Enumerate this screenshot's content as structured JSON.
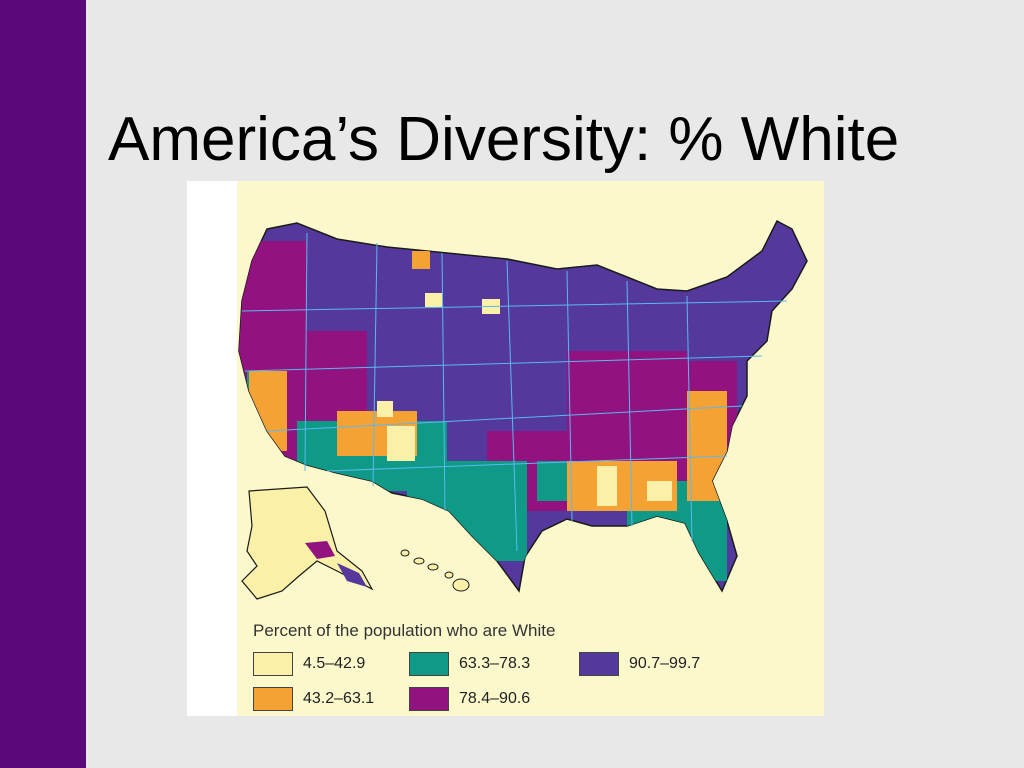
{
  "slide": {
    "title": "America’s Diversity: % White"
  },
  "map": {
    "legend_title": "Percent of the population who are White",
    "colors": {
      "background": "#fbf8cc",
      "border": "#5bb8f0",
      "outline": "#1a1a1a"
    },
    "legend": [
      {
        "label": "4.5–42.9",
        "color": "#fbf0a8"
      },
      {
        "label": "43.2–63.1",
        "color": "#f4a234"
      },
      {
        "label": "63.3–78.3",
        "color": "#0e9a86"
      },
      {
        "label": "78.4–90.6",
        "color": "#92137f"
      },
      {
        "label": "90.7–99.7",
        "color": "#54389c"
      }
    ]
  }
}
